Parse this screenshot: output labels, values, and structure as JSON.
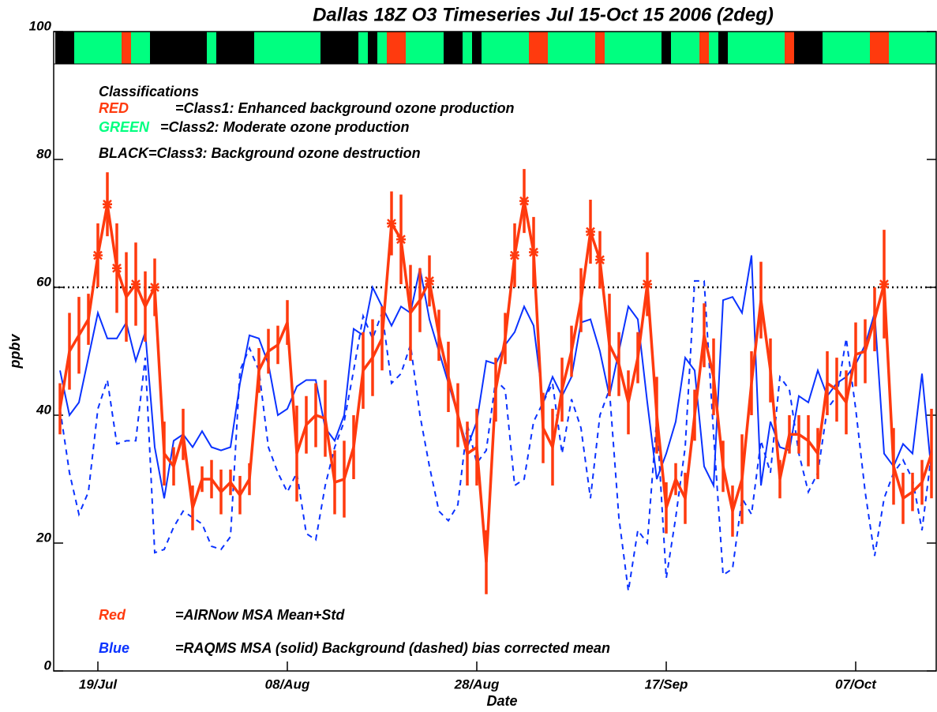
{
  "chart_data": {
    "type": "line",
    "title": "Dallas 18Z O3 Timeseries Jul 15-Oct 15 2006 (2deg)",
    "xlabel": "Date",
    "ylabel": "ppbv",
    "ylim": [
      0,
      100
    ],
    "yticks": [
      0,
      20,
      40,
      60,
      80,
      100
    ],
    "threshold": 60,
    "x": [
      "15/Jul",
      "16/Jul",
      "17/Jul",
      "18/Jul",
      "19/Jul",
      "20/Jul",
      "21/Jul",
      "22/Jul",
      "23/Jul",
      "24/Jul",
      "25/Jul",
      "26/Jul",
      "27/Jul",
      "28/Jul",
      "29/Jul",
      "30/Jul",
      "31/Jul",
      "01/Aug",
      "02/Aug",
      "03/Aug",
      "04/Aug",
      "05/Aug",
      "06/Aug",
      "07/Aug",
      "08/Aug",
      "09/Aug",
      "10/Aug",
      "11/Aug",
      "12/Aug",
      "13/Aug",
      "14/Aug",
      "15/Aug",
      "16/Aug",
      "17/Aug",
      "18/Aug",
      "19/Aug",
      "20/Aug",
      "21/Aug",
      "22/Aug",
      "23/Aug",
      "24/Aug",
      "25/Aug",
      "26/Aug",
      "27/Aug",
      "28/Aug",
      "29/Aug",
      "30/Aug",
      "31/Aug",
      "01/Sep",
      "02/Sep",
      "03/Sep",
      "04/Sep",
      "05/Sep",
      "06/Sep",
      "07/Sep",
      "08/Sep",
      "09/Sep",
      "10/Sep",
      "11/Sep",
      "12/Sep",
      "13/Sep",
      "14/Sep",
      "15/Sep",
      "16/Sep",
      "17/Sep",
      "18/Sep",
      "19/Sep",
      "20/Sep",
      "21/Sep",
      "22/Sep",
      "23/Sep",
      "24/Sep",
      "25/Sep",
      "26/Sep",
      "27/Sep",
      "28/Sep",
      "29/Sep",
      "30/Sep",
      "01/Oct",
      "02/Oct",
      "03/Oct",
      "04/Oct",
      "05/Oct",
      "06/Oct",
      "07/Oct",
      "08/Oct",
      "09/Oct",
      "10/Oct",
      "11/Oct",
      "12/Oct",
      "13/Oct",
      "14/Oct",
      "15/Oct"
    ],
    "xticks": [
      "19/Jul",
      "08/Aug",
      "28/Aug",
      "17/Sep",
      "07/Oct"
    ],
    "series": [
      {
        "name": "Red",
        "color": "#ff3a0e",
        "style": "solid",
        "values": [
          41,
          50,
          52.5,
          55,
          65,
          73,
          63,
          58.5,
          60.5,
          57,
          60,
          34,
          32,
          37,
          25.5,
          30,
          30,
          28,
          29.5,
          27.5,
          30,
          47,
          50,
          51,
          54.5,
          34,
          38.5,
          40,
          39.5,
          29.5,
          30,
          35,
          47,
          49,
          52,
          70,
          67.5,
          56,
          58,
          61,
          52.5,
          46,
          40,
          34,
          35,
          17,
          44,
          52,
          65,
          73.5,
          65.5,
          38,
          35,
          44,
          50,
          58,
          68.7,
          64.3,
          51,
          48,
          42,
          49,
          60.5,
          40,
          25.5,
          30,
          27,
          40,
          52.5,
          46,
          32,
          25,
          30,
          45,
          58,
          47,
          30,
          37,
          37,
          36,
          34,
          45,
          44,
          42,
          49.5,
          50,
          55,
          60.5,
          32,
          27,
          28,
          29.5,
          34
        ],
        "errors": [
          4,
          6,
          6,
          4,
          5,
          5,
          7,
          7,
          6.5,
          5.5,
          4.5,
          5,
          3,
          4,
          3.5,
          2,
          3,
          3.5,
          2,
          3,
          2.5,
          3.5,
          3.5,
          3,
          3.5,
          7.5,
          4.5,
          5,
          6,
          5,
          6,
          5,
          6,
          6,
          5,
          5,
          7,
          7.5,
          5,
          4,
          4,
          5.5,
          5,
          5,
          6,
          5,
          5,
          4,
          5,
          5,
          5.5,
          5.5,
          6,
          5,
          4,
          5,
          5,
          4.5,
          8,
          5,
          5,
          4,
          5,
          6,
          4,
          2.5,
          4,
          4,
          5,
          6,
          4,
          4,
          7,
          5,
          6,
          5,
          3,
          3,
          3,
          4,
          4,
          5,
          5,
          5,
          5,
          5,
          5,
          8.5,
          6,
          4,
          3,
          3.5,
          7
        ]
      },
      {
        "color": "#0a32ff",
        "style": "solid",
        "values": [
          47,
          40,
          42,
          49,
          56,
          52,
          52,
          54.5,
          48.5,
          53,
          35,
          27,
          36,
          37,
          35,
          37.5,
          35,
          34.5,
          35,
          45,
          52.5,
          52,
          48,
          40,
          41,
          44.5,
          45.5,
          45.5,
          38,
          36,
          40,
          53.5,
          52.5,
          60,
          57,
          54,
          57,
          56,
          63,
          55,
          50,
          45,
          40,
          35,
          39,
          48.5,
          48,
          51,
          53,
          57,
          54,
          42,
          46,
          43,
          46,
          54.5,
          55,
          50,
          43,
          50,
          57,
          55,
          42,
          30,
          34,
          39,
          49,
          47,
          32,
          29,
          58,
          58.5,
          56,
          65,
          29,
          39,
          35,
          34.5,
          43,
          42,
          47,
          43,
          45,
          46,
          48,
          51,
          56,
          34,
          32,
          35.5,
          34,
          46.5,
          31
        ]
      },
      {
        "color": "#0a32ff",
        "style": "dashed",
        "values": [
          41,
          31,
          24.5,
          28,
          41,
          45.5,
          35.5,
          36,
          36,
          49,
          18.5,
          19,
          22.5,
          25,
          24,
          23,
          19.5,
          19,
          21,
          47,
          50.5,
          47,
          35,
          31,
          28,
          31,
          21.5,
          20.5,
          29,
          35,
          39,
          47,
          55.5,
          52,
          56,
          45,
          46.5,
          51,
          40,
          32,
          25,
          23.5,
          26,
          38.5,
          32.5,
          34.5,
          45.5,
          44,
          29,
          30,
          39,
          42,
          45,
          34,
          42.5,
          38,
          27,
          40,
          44,
          24,
          12.5,
          22,
          20,
          39.5,
          14.5,
          24,
          35,
          61,
          61,
          37,
          15,
          16,
          27,
          24.5,
          36,
          31,
          46,
          44,
          34,
          28,
          31,
          41,
          43,
          52,
          41,
          28,
          18,
          27,
          31,
          33,
          30,
          22,
          34
        ]
      }
    ],
    "classes": [
      3,
      3,
      2,
      2,
      2,
      2,
      2,
      1,
      2,
      2,
      3,
      3,
      3,
      3,
      3,
      3,
      2,
      3,
      3,
      3,
      3,
      2,
      2,
      2,
      2,
      2,
      2,
      2,
      3,
      3,
      3,
      3,
      2,
      3,
      2,
      1,
      1,
      2,
      2,
      2,
      2,
      3,
      3,
      2,
      3,
      2,
      2,
      2,
      2,
      2,
      1,
      1,
      2,
      2,
      2,
      2,
      2,
      1,
      2,
      2,
      2,
      2,
      2,
      2,
      3,
      2,
      2,
      2,
      1,
      2,
      3,
      2,
      2,
      2,
      2,
      2,
      2,
      1,
      3,
      3,
      3,
      2,
      2,
      2,
      2,
      2,
      1,
      1,
      2,
      2,
      2,
      2,
      2
    ],
    "classes_title": "Classifications",
    "classes_legend": [
      {
        "class": 1,
        "name": "RED",
        "color": "#ff3a0e",
        "text": "=Class1: Enhanced background ozone production"
      },
      {
        "class": 2,
        "name": "GREEN",
        "color": "#00ff80",
        "text": "=Class2: Moderate ozone production"
      },
      {
        "class": 3,
        "name": "BLACK",
        "color": "#000000",
        "text": "=Class3: Background ozone destruction"
      }
    ],
    "legend": [
      {
        "name": "Red",
        "color": "#ff3a0e",
        "text": "=AIRNow MSA Mean+Std"
      },
      {
        "name": "Blue",
        "color": "#0a32ff",
        "text": "=RAQMS MSA (solid) Background (dashed) bias corrected mean"
      }
    ]
  }
}
